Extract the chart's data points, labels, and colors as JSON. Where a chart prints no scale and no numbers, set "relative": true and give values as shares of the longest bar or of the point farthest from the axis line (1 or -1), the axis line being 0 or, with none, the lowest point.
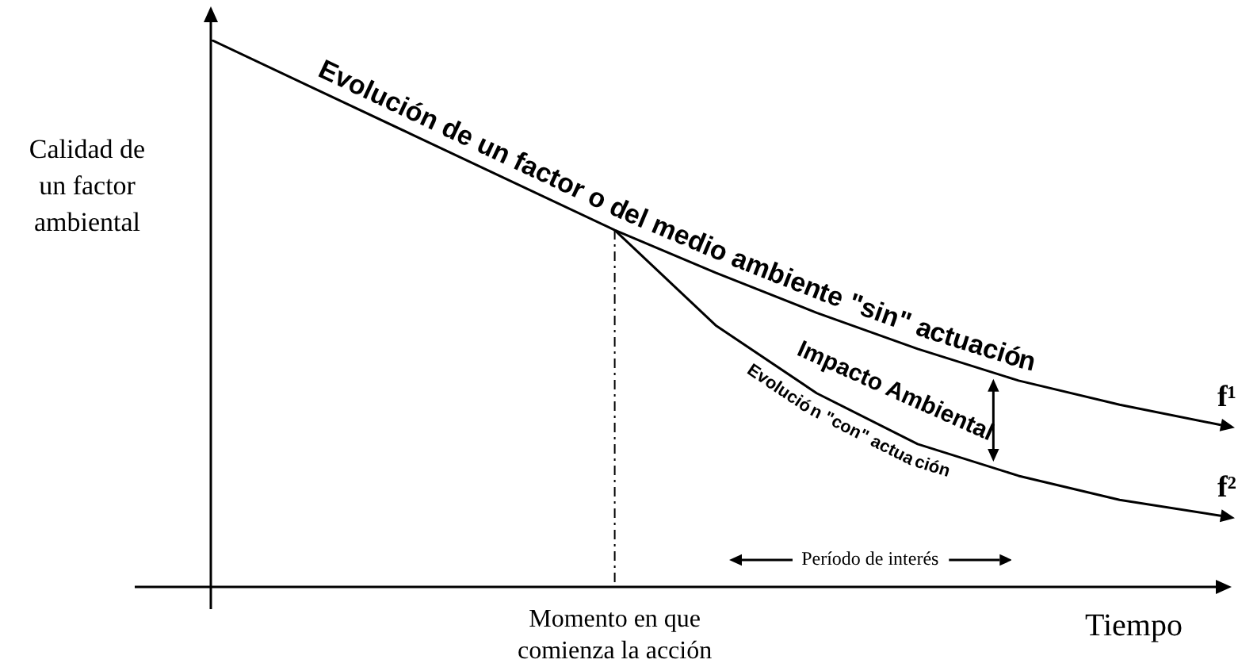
{
  "chart_data": {
    "type": "line",
    "relative": true,
    "xlabel": "Tiempo",
    "ylabel": "Calidad de un factor ambiental",
    "categories": [
      null,
      null,
      null,
      null,
      null,
      null,
      null,
      null,
      null,
      null,
      null
    ],
    "tick_labels": false,
    "legend": false,
    "marker": "none",
    "line_style": "solid",
    "series": [
      {
        "name": "Evolución de un factor o del medio ambiente \"sin\" actuación",
        "color": "#000000",
        "values": [
          1,
          0.913,
          0.826,
          0.739,
          0.652,
          0.574,
          0.501,
          0.435,
          0.377,
          0.333,
          0.296
        ]
      },
      {
        "name": "Evolución \"con\" actuación",
        "color": "#000000",
        "values": [
          null,
          null,
          null,
          null,
          0.652,
          0.478,
          0.354,
          0.261,
          0.203,
          0.159,
          0.13
        ]
      }
    ],
    "annotations": [
      "f¹",
      "f²",
      "Impacto Ambiental",
      "Período de interés",
      "Momento en que comienza la acción"
    ]
  }
}
